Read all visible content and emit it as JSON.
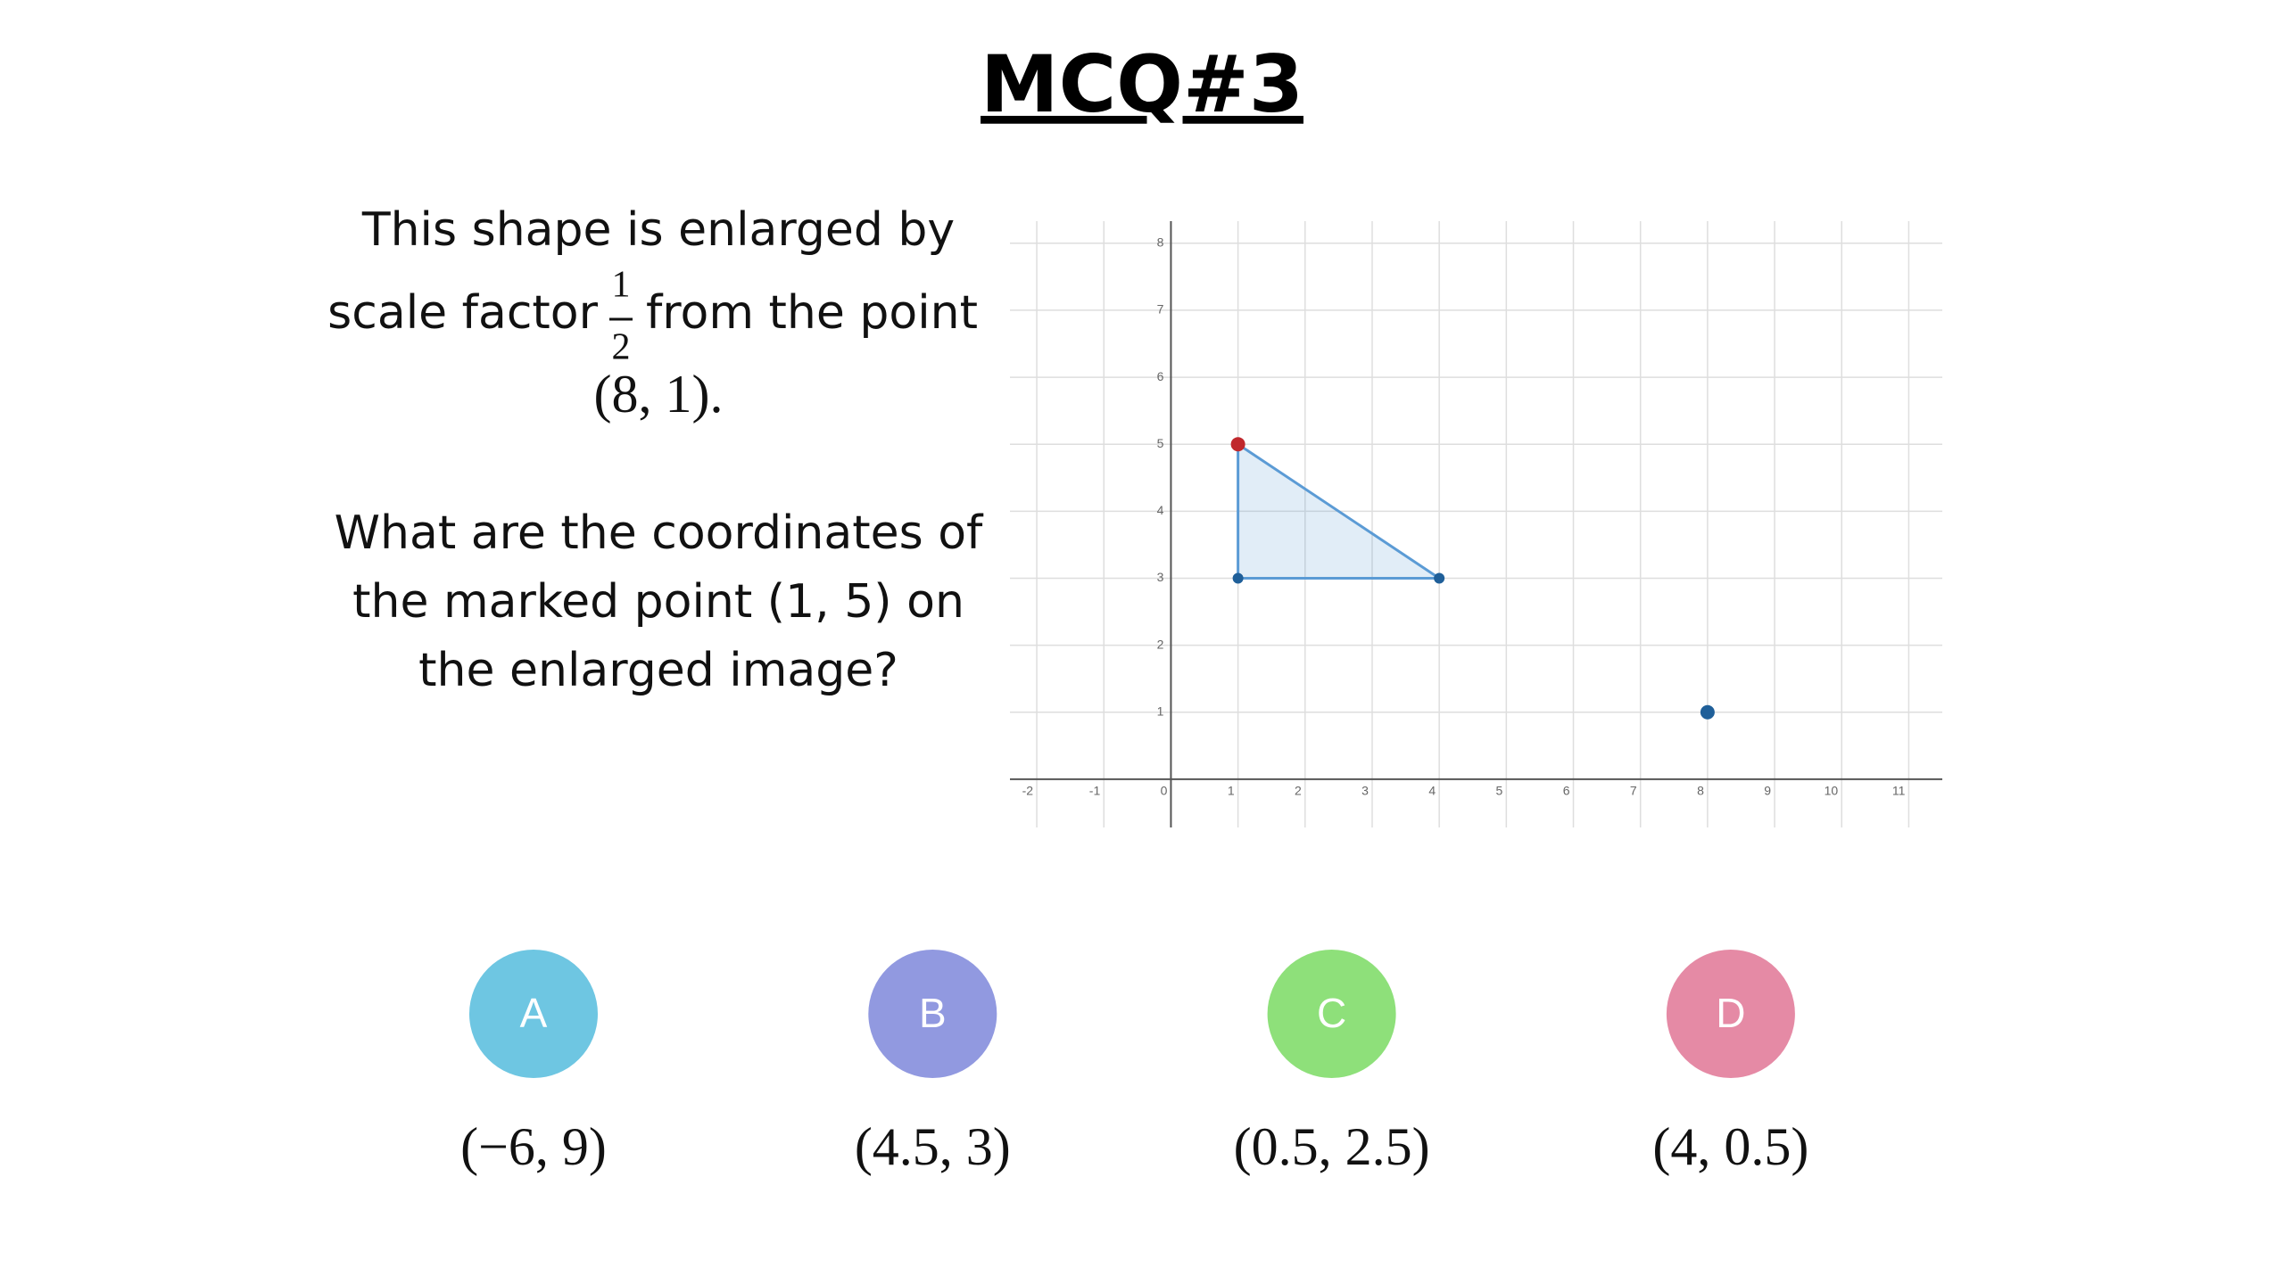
{
  "title": "MCQ#3",
  "question": {
    "line_1": "This shape is enlarged by",
    "line_2_before": "scale factor",
    "fraction": {
      "numerator": 1,
      "denominator": 2
    },
    "line_2_after": "from the point",
    "line_3": "(8, 1).",
    "paragraph_2": [
      "What are the coordinates of",
      "the marked point (1, 5) on",
      "the enlarged image?"
    ]
  },
  "graph": {
    "xlim": [
      -2.4,
      11.5
    ],
    "ylim": [
      -0.72,
      8.33
    ],
    "xticks": [
      -2,
      -1,
      0,
      1,
      2,
      3,
      4,
      5,
      6,
      7,
      8,
      9,
      10,
      11
    ],
    "yticks": [
      1,
      2,
      3,
      4,
      5,
      6,
      7,
      8
    ],
    "shape": {
      "x": [
        1,
        1,
        4
      ],
      "y": [
        5,
        3,
        3
      ],
      "color": "#5b9bd5"
    },
    "marked_point": {
      "x": 1,
      "y": 5,
      "color": "#c0282d"
    },
    "center": {
      "x": 8,
      "y": 1,
      "color": "#1f5f99"
    }
  },
  "options": [
    {
      "letter": "A",
      "answer": "(−6, 9)",
      "color": "#6ec6e2"
    },
    {
      "letter": "B",
      "answer": "(4.5, 3)",
      "color": "#9199e0"
    },
    {
      "letter": "C",
      "answer": "(0.5, 2.5)",
      "color": "#8ee07a"
    },
    {
      "letter": "D",
      "answer": "(4, 0.5)",
      "color": "#e58aa5"
    }
  ]
}
